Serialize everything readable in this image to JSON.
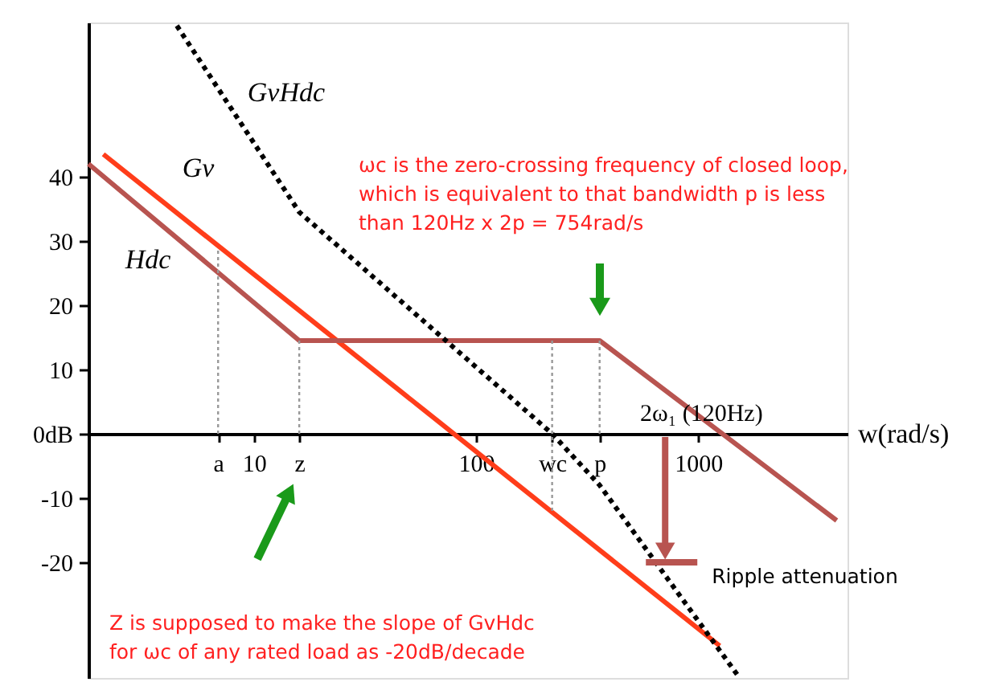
{
  "chart_data": {
    "type": "line",
    "xlabel": "w(rad/s)",
    "log": "x",
    "xlim": [
      1.8,
      4700
    ],
    "ylim": [
      -38,
      64
    ],
    "xticks": [
      {
        "value": 6.9,
        "label": "a"
      },
      10,
      {
        "value": 16,
        "label": "z"
      },
      100,
      {
        "value": 220,
        "label": "wc"
      },
      {
        "value": 360,
        "label": "p"
      },
      1000
    ],
    "yticks": [
      -20,
      -10,
      {
        "value": 0,
        "label": "0dB"
      },
      10,
      20,
      30,
      40
    ],
    "series": [
      {
        "name": "Gv",
        "color": "#ff3d1a",
        "x": [
          2.1,
          1250
        ],
        "values": [
          43.5,
          -33
        ]
      },
      {
        "name": "Hdc",
        "color": "#b85450",
        "x": [
          1.8,
          16,
          360,
          4200
        ],
        "values": [
          42,
          14.5,
          14.5,
          -13.5
        ]
      },
      {
        "name": "GvHdc",
        "color": "#000000",
        "line_style": "dotted",
        "x": [
          4.5,
          16,
          220,
          360,
          1500
        ],
        "values": [
          63.5,
          34.5,
          0,
          -8,
          -37.5
        ]
      },
      {
        "color": "#999999",
        "line_style": "dotted",
        "x": [
          6.9,
          6.9
        ],
        "values": [
          0,
          29
        ]
      },
      {
        "color": "#999999",
        "line_style": "dotted",
        "x": [
          16,
          16
        ],
        "values": [
          0,
          14.5
        ]
      },
      {
        "color": "#999999",
        "line_style": "dotted",
        "x": [
          220,
          220
        ],
        "values": [
          -12,
          14.5
        ]
      },
      {
        "color": "#999999",
        "line_style": "dotted",
        "x": [
          360,
          360
        ],
        "values": [
          0,
          14.5
        ]
      }
    ],
    "annotations": [
      "ωc is the zero-crossing frequency of closed loop,\nwhich is equivalent to that bandwidth p is less\nthan 120Hz x 2p = 754rad/s",
      "Z is supposed to make the slope of GvHdc\nfor ωc of any rated load as -20dB/decade",
      "2ω₁  (120Hz)",
      {
        "text": "Ripple attenuation",
        "x": 710,
        "y": -20
      }
    ]
  }
}
